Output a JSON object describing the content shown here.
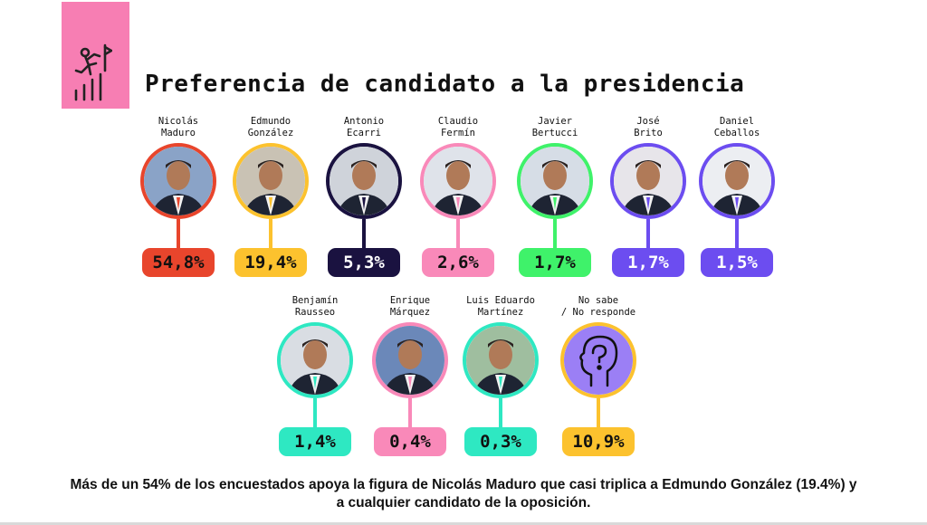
{
  "title": "Preferencia de candidato a la presidencia",
  "footer": {
    "line1": "Más de un 54% de los encuestados apoya la figura de Nicolás Maduro que casi triplica a Edmundo González (19.4%) y",
    "line2": "a cualquier candidato de la oposición."
  },
  "icons": {
    "logo": "climbing-person-chart-icon",
    "unknown": "head-question-icon"
  },
  "chart_data": {
    "type": "bar",
    "unit": "%",
    "categories": [
      "Nicolás Maduro",
      "Edmundo González",
      "Antonio Ecarri",
      "Claudio Fermín",
      "Javier Bertucci",
      "José Brito",
      "Daniel Ceballos",
      "Benjamín Rausseo",
      "Enrique Márquez",
      "Luis Eduardo Martínez",
      "No sabe / No responde"
    ],
    "values": [
      54.8,
      19.4,
      5.3,
      2.6,
      1.7,
      1.7,
      1.5,
      1.4,
      0.4,
      0.3,
      10.9
    ],
    "items": [
      {
        "name_line1": "Nicolás",
        "name_line2": "Maduro",
        "value_label": "54,8%",
        "value": 54.8,
        "color": "#e8452c",
        "text_color": "#111111"
      },
      {
        "name_line1": "Edmundo",
        "name_line2": "González",
        "value_label": "19,4%",
        "value": 19.4,
        "color": "#fcc22e",
        "text_color": "#111111"
      },
      {
        "name_line1": "Antonio",
        "name_line2": "Ecarri",
        "value_label": "5,3%",
        "value": 5.3,
        "color": "#1a1240",
        "text_color": "#ffffff"
      },
      {
        "name_line1": "Claudio",
        "name_line2": "Fermín",
        "value_label": "2,6%",
        "value": 2.6,
        "color": "#f989b9",
        "text_color": "#111111"
      },
      {
        "name_line1": "Javier",
        "name_line2": "Bertucci",
        "value_label": "1,7%",
        "value": 1.7,
        "color": "#3ff26a",
        "text_color": "#111111"
      },
      {
        "name_line1": "José",
        "name_line2": "Brito",
        "value_label": "1,7%",
        "value": 1.7,
        "color": "#6c4df0",
        "text_color": "#ffffff"
      },
      {
        "name_line1": "Daniel",
        "name_line2": "Ceballos",
        "value_label": "1,5%",
        "value": 1.5,
        "color": "#6c4df0",
        "text_color": "#ffffff"
      },
      {
        "name_line1": "Benjamín",
        "name_line2": "Rausseo",
        "value_label": "1,4%",
        "value": 1.4,
        "color": "#2ee8c2",
        "text_color": "#111111"
      },
      {
        "name_line1": "Enrique",
        "name_line2": "Márquez",
        "value_label": "0,4%",
        "value": 0.4,
        "color": "#f989b9",
        "text_color": "#111111"
      },
      {
        "name_line1": "Luis Eduardo",
        "name_line2": "Martínez",
        "value_label": "0,3%",
        "value": 0.3,
        "color": "#2ee8c2",
        "text_color": "#111111"
      },
      {
        "name_line1": "No sabe",
        "name_line2": "/ No responde",
        "value_label": "10,9%",
        "value": 10.9,
        "color": "#fcc22e",
        "text_color": "#111111"
      }
    ]
  }
}
